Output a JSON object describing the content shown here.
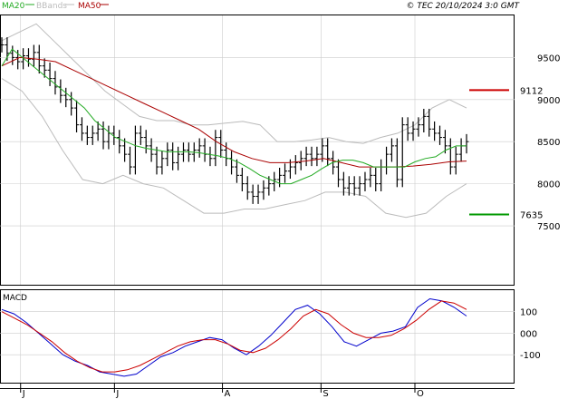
{
  "header": {
    "legend": [
      {
        "name": "MA20",
        "color": "#22aa22"
      },
      {
        "name": "BBands",
        "color": "#bbbbbb"
      },
      {
        "name": "MA50",
        "color": "#aa0000"
      }
    ],
    "copyright": "© TEC 20/10/2024 3:0 GMT"
  },
  "markers": [
    {
      "label": "9112",
      "value": 9112,
      "color": "#cc0000"
    },
    {
      "label": "7635",
      "value": 7635,
      "color": "#009900"
    }
  ],
  "price_panel": {
    "yticks": [
      "9500",
      "9000",
      "8500",
      "8000",
      "7500"
    ],
    "ytick_values": [
      9500,
      9000,
      8500,
      8000,
      7500
    ],
    "ylim": [
      6800,
      10000
    ]
  },
  "macd_panel": {
    "label": "MACD",
    "yticks": [
      "100",
      "000",
      "-100"
    ],
    "ytick_values": [
      100,
      0,
      -100
    ],
    "ylim": [
      -230,
      200
    ]
  },
  "xaxis": {
    "labels": [
      "J",
      "J",
      "A",
      "S",
      "O"
    ],
    "label_index": [
      4,
      24,
      47,
      68,
      88
    ],
    "n_days": 100
  },
  "colors": {
    "ma20": "#22aa22",
    "ma50": "#aa0000",
    "bbands": "#bbbbbb",
    "candle": "#000000",
    "macd_line": "#0000cc",
    "signal_line": "#cc0000",
    "grid": "#cccccc"
  },
  "chart_data": {
    "type": "ohlc",
    "series": [
      {
        "name": "close",
        "values": [
          9650,
          9550,
          9500,
          9450,
          9520,
          9480,
          9560,
          9400,
          9350,
          9250,
          9150,
          9050,
          9000,
          8900,
          8700,
          8600,
          8550,
          8600,
          8650,
          8500,
          8600,
          8550,
          8450,
          8350,
          8200,
          8600,
          8550,
          8450,
          8350,
          8200,
          8300,
          8400,
          8250,
          8350,
          8400,
          8350,
          8400,
          8450,
          8350,
          8300,
          8550,
          8400,
          8300,
          8200,
          8100,
          8000,
          7900,
          7850,
          7900,
          7950,
          8000,
          8050,
          8100,
          8150,
          8200,
          8250,
          8300,
          8350,
          8300,
          8350,
          8450,
          8300,
          8200,
          8050,
          7950,
          8000,
          7950,
          8000,
          8050,
          8100,
          8000,
          8200,
          8350,
          8450,
          8050,
          8700,
          8600,
          8650,
          8700,
          8800,
          8650,
          8600,
          8550,
          8450,
          8200,
          8350,
          8450,
          8500
        ]
      },
      {
        "name": "MA20",
        "values": [
          9400,
          9600,
          9500,
          9400,
          9300,
          9200,
          9100,
          9000,
          8900,
          8750,
          8650,
          8550,
          8500,
          8450,
          8420,
          8400,
          8380,
          8380,
          8380,
          8370,
          8350,
          8330,
          8300,
          8250,
          8180,
          8100,
          8050,
          8000,
          8000,
          8050,
          8100,
          8180,
          8250,
          8280,
          8280,
          8250,
          8200,
          8200,
          8200,
          8200,
          8260,
          8300,
          8320,
          8400,
          8450,
          8450
        ]
      },
      {
        "name": "MA50",
        "values": [
          9400,
          9500,
          9480,
          9450,
          9350,
          9250,
          9150,
          9050,
          8950,
          8850,
          8750,
          8650,
          8500,
          8380,
          8300,
          8250,
          8250,
          8270,
          8300,
          8250,
          8200,
          8200,
          8200,
          8210,
          8230,
          8260,
          8270
        ]
      },
      {
        "name": "BBand upper",
        "values": [
          9700,
          9800,
          9900,
          9700,
          9500,
          9300,
          9100,
          8950,
          8800,
          8750,
          8750,
          8700,
          8700,
          8720,
          8740,
          8700,
          8500,
          8500,
          8520,
          8550,
          8500,
          8480,
          8550,
          8600,
          8700,
          8900,
          9000,
          8900
        ]
      },
      {
        "name": "BBand lower",
        "values": [
          9250,
          9100,
          8800,
          8400,
          8050,
          8000,
          8100,
          8000,
          7950,
          7800,
          7650,
          7650,
          7700,
          7700,
          7750,
          7800,
          7900,
          7900,
          7850,
          7650,
          7600,
          7650,
          7850,
          8000
        ]
      },
      {
        "name": "MACD",
        "values": [
          110,
          90,
          50,
          0,
          -50,
          -100,
          -130,
          -150,
          -180,
          -190,
          -200,
          -190,
          -150,
          -110,
          -90,
          -60,
          -40,
          -20,
          -30,
          -70,
          -100,
          -60,
          -10,
          50,
          110,
          130,
          90,
          30,
          -40,
          -60,
          -30,
          0,
          10,
          30,
          120,
          160,
          150,
          120,
          80
        ]
      },
      {
        "name": "Signal",
        "values": [
          100,
          70,
          40,
          0,
          -40,
          -90,
          -130,
          -160,
          -180,
          -180,
          -170,
          -150,
          -120,
          -90,
          -60,
          -40,
          -30,
          -30,
          -50,
          -80,
          -90,
          -70,
          -30,
          20,
          80,
          110,
          90,
          40,
          0,
          -20,
          -20,
          -10,
          20,
          60,
          110,
          150,
          140,
          110
        ]
      }
    ]
  }
}
